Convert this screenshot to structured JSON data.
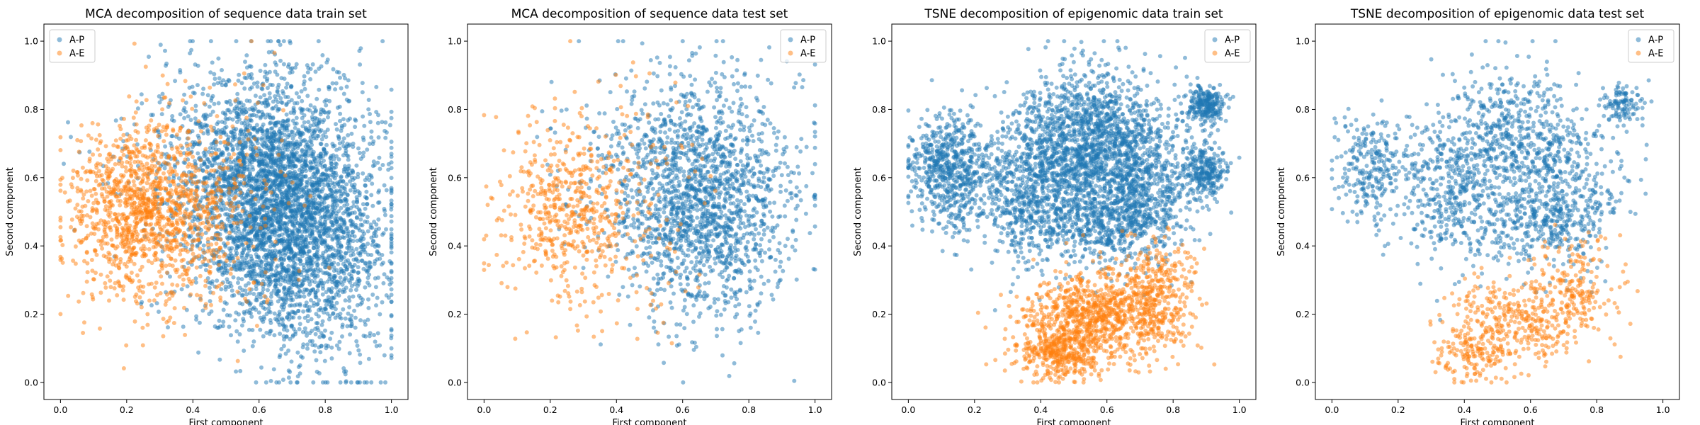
{
  "figure": {
    "x_axis_label": "First component",
    "y_axis_label": "Second component",
    "legend": {
      "position": "top-right",
      "entries": [
        "A-P",
        "A-E"
      ]
    },
    "series_colors": {
      "A-P": "#1f77b4",
      "A-E": "#ff7f0e"
    },
    "point_alpha": 0.5
  },
  "chart_data": [
    {
      "type": "scatter",
      "title": "MCA decomposition of sequence data train set",
      "xlabel": "First component",
      "ylabel": "Second component",
      "xlim": [
        -0.05,
        1.05
      ],
      "ylim": [
        -0.05,
        1.05
      ],
      "xticks": [
        "0.0",
        "0.2",
        "0.4",
        "0.6",
        "0.8",
        "1.0"
      ],
      "yticks": [
        "0.0",
        "0.2",
        "0.4",
        "0.6",
        "0.8",
        "1.0"
      ],
      "grid": false,
      "legend_position": "top-left",
      "series": [
        {
          "name": "A-P",
          "color": "#1f77b4",
          "seed": 11,
          "clusters": [
            {
              "w": 0.6,
              "cx": 0.66,
              "cy": 0.5,
              "sx": 0.13,
              "sy": 0.17
            },
            {
              "w": 0.25,
              "cx": 0.6,
              "cy": 0.65,
              "sx": 0.18,
              "sy": 0.15
            },
            {
              "w": 0.15,
              "cx": 0.8,
              "cy": 0.35,
              "sx": 0.11,
              "sy": 0.18
            }
          ],
          "count": 4300
        },
        {
          "name": "A-E",
          "color": "#ff7f0e",
          "seed": 23,
          "clusters": [
            {
              "w": 0.7,
              "cx": 0.24,
              "cy": 0.5,
              "sx": 0.11,
              "sy": 0.12
            },
            {
              "w": 0.3,
              "cx": 0.4,
              "cy": 0.5,
              "sx": 0.14,
              "sy": 0.17
            }
          ],
          "count": 1400
        }
      ]
    },
    {
      "type": "scatter",
      "title": "MCA decomposition of sequence data test set",
      "xlabel": "First component",
      "ylabel": "Second component",
      "xlim": [
        -0.05,
        1.05
      ],
      "ylim": [
        -0.05,
        1.05
      ],
      "xticks": [
        "0.0",
        "0.2",
        "0.4",
        "0.6",
        "0.8",
        "1.0"
      ],
      "yticks": [
        "0.0",
        "0.2",
        "0.4",
        "0.6",
        "0.8",
        "1.0"
      ],
      "grid": false,
      "legend_position": "top-right",
      "series": [
        {
          "name": "A-P",
          "color": "#1f77b4",
          "seed": 37,
          "clusters": [
            {
              "w": 0.65,
              "cx": 0.66,
              "cy": 0.5,
              "sx": 0.13,
              "sy": 0.17
            },
            {
              "w": 0.35,
              "cx": 0.62,
              "cy": 0.62,
              "sx": 0.17,
              "sy": 0.16
            }
          ],
          "count": 1900
        },
        {
          "name": "A-E",
          "color": "#ff7f0e",
          "seed": 41,
          "clusters": [
            {
              "w": 0.7,
              "cx": 0.24,
              "cy": 0.5,
              "sx": 0.11,
              "sy": 0.13
            },
            {
              "w": 0.3,
              "cx": 0.4,
              "cy": 0.52,
              "sx": 0.13,
              "sy": 0.17
            }
          ],
          "count": 620
        }
      ]
    },
    {
      "type": "scatter",
      "title": "TSNE decomposition of epigenomic data train set",
      "xlabel": "First component",
      "ylabel": "Second component",
      "xlim": [
        -0.05,
        1.05
      ],
      "ylim": [
        -0.05,
        1.05
      ],
      "xticks": [
        "0.0",
        "0.2",
        "0.4",
        "0.6",
        "0.8",
        "1.0"
      ],
      "yticks": [
        "0.0",
        "0.2",
        "0.4",
        "0.6",
        "0.8",
        "1.0"
      ],
      "grid": false,
      "legend_position": "top-right",
      "series": [
        {
          "name": "A-P",
          "color": "#1f77b4",
          "seed": 53,
          "clusters": [
            {
              "w": 0.3,
              "cx": 0.55,
              "cy": 0.72,
              "sx": 0.11,
              "sy": 0.1
            },
            {
              "w": 0.18,
              "cx": 0.37,
              "cy": 0.55,
              "sx": 0.09,
              "sy": 0.1
            },
            {
              "w": 0.14,
              "cx": 0.12,
              "cy": 0.62,
              "sx": 0.06,
              "sy": 0.08
            },
            {
              "w": 0.16,
              "cx": 0.72,
              "cy": 0.57,
              "sx": 0.08,
              "sy": 0.1
            },
            {
              "w": 0.1,
              "cx": 0.6,
              "cy": 0.47,
              "sx": 0.08,
              "sy": 0.06
            },
            {
              "w": 0.06,
              "cx": 0.9,
              "cy": 0.81,
              "sx": 0.03,
              "sy": 0.03
            },
            {
              "w": 0.06,
              "cx": 0.9,
              "cy": 0.62,
              "sx": 0.03,
              "sy": 0.04
            }
          ],
          "count": 4300
        },
        {
          "name": "A-E",
          "color": "#ff7f0e",
          "seed": 61,
          "clusters": [
            {
              "w": 0.55,
              "cx": 0.55,
              "cy": 0.19,
              "sx": 0.1,
              "sy": 0.07
            },
            {
              "w": 0.25,
              "cx": 0.75,
              "cy": 0.25,
              "sx": 0.06,
              "sy": 0.08
            },
            {
              "w": 0.2,
              "cx": 0.45,
              "cy": 0.08,
              "sx": 0.06,
              "sy": 0.04
            }
          ],
          "count": 1500
        }
      ]
    },
    {
      "type": "scatter",
      "title": "TSNE decomposition of epigenomic data test set",
      "xlabel": "First component",
      "ylabel": "Second component",
      "xlim": [
        -0.05,
        1.05
      ],
      "ylim": [
        -0.05,
        1.05
      ],
      "xticks": [
        "0.0",
        "0.2",
        "0.4",
        "0.6",
        "0.8",
        "1.0"
      ],
      "yticks": [
        "0.0",
        "0.2",
        "0.4",
        "0.6",
        "0.8",
        "1.0"
      ],
      "grid": false,
      "legend_position": "top-right",
      "series": [
        {
          "name": "A-P",
          "color": "#1f77b4",
          "seed": 71,
          "clusters": [
            {
              "w": 0.32,
              "cx": 0.55,
              "cy": 0.72,
              "sx": 0.11,
              "sy": 0.1
            },
            {
              "w": 0.2,
              "cx": 0.37,
              "cy": 0.55,
              "sx": 0.09,
              "sy": 0.1
            },
            {
              "w": 0.14,
              "cx": 0.12,
              "cy": 0.62,
              "sx": 0.06,
              "sy": 0.08
            },
            {
              "w": 0.16,
              "cx": 0.72,
              "cy": 0.55,
              "sx": 0.08,
              "sy": 0.1
            },
            {
              "w": 0.06,
              "cx": 0.88,
              "cy": 0.81,
              "sx": 0.03,
              "sy": 0.03
            },
            {
              "w": 0.12,
              "cx": 0.6,
              "cy": 0.46,
              "sx": 0.08,
              "sy": 0.06
            }
          ],
          "count": 1900
        },
        {
          "name": "A-E",
          "color": "#ff7f0e",
          "seed": 83,
          "clusters": [
            {
              "w": 0.55,
              "cx": 0.55,
              "cy": 0.19,
              "sx": 0.1,
              "sy": 0.07
            },
            {
              "w": 0.25,
              "cx": 0.75,
              "cy": 0.27,
              "sx": 0.06,
              "sy": 0.08
            },
            {
              "w": 0.2,
              "cx": 0.43,
              "cy": 0.08,
              "sx": 0.06,
              "sy": 0.04
            }
          ],
          "count": 650
        }
      ]
    }
  ]
}
